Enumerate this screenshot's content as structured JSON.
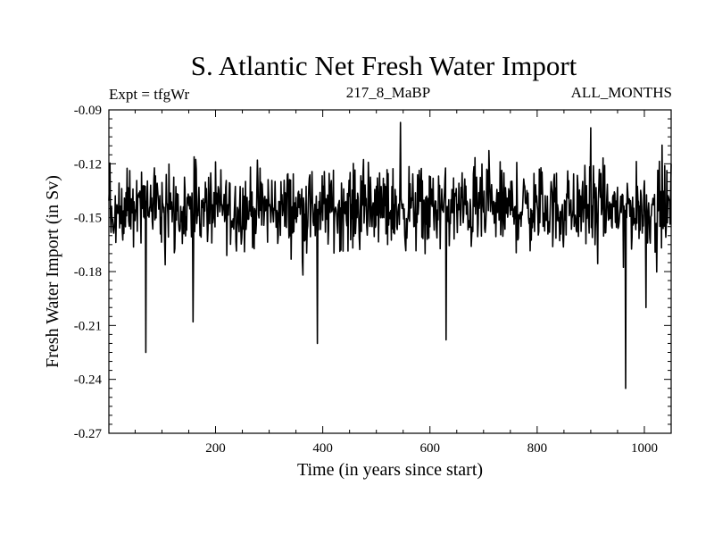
{
  "chart_data": {
    "type": "line",
    "title": "S. Atlantic Net Fresh Water Import",
    "annotations": {
      "left": "Expt = tfgWr",
      "center": "217_8_MaBP",
      "right": "ALL_MONTHS"
    },
    "xlabel": "Time (in years since start)",
    "ylabel": "Fresh Water Import (in Sv)",
    "xlim": [
      1,
      1050
    ],
    "ylim": [
      -0.27,
      -0.09
    ],
    "xticks": [
      200,
      400,
      600,
      800,
      1000
    ],
    "yticks": [
      -0.27,
      -0.24,
      -0.21,
      -0.18,
      -0.15,
      -0.12,
      -0.09
    ],
    "ytick_labels": [
      "-0.27",
      "-0.24",
      "-0.21",
      "-0.18",
      "-0.15",
      "-0.12",
      "-0.09"
    ],
    "series": [
      {
        "name": "net fresh water import",
        "generated": true,
        "mean": -0.145,
        "noise_amplitude": 0.026,
        "n_points": 1050,
        "extremes": [
          {
            "x": 70,
            "y": -0.225
          },
          {
            "x": 158,
            "y": -0.208
          },
          {
            "x": 390,
            "y": -0.22
          },
          {
            "x": 545,
            "y": -0.097
          },
          {
            "x": 630,
            "y": -0.218
          },
          {
            "x": 900,
            "y": -0.1
          },
          {
            "x": 965,
            "y": -0.245
          },
          {
            "x": 1003,
            "y": -0.2
          }
        ]
      }
    ]
  }
}
